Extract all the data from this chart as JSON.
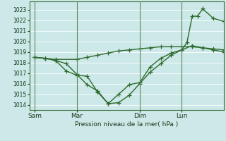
{
  "xlabel": "Pression niveau de la mer( hPa )",
  "bg_color": "#cce8e8",
  "grid_color": "#b8d8d8",
  "line_color": "#2d6a2d",
  "vline_color": "#5a8a5a",
  "ylim": [
    1013.5,
    1023.8
  ],
  "yticks": [
    1014,
    1015,
    1016,
    1017,
    1018,
    1019,
    1020,
    1021,
    1022,
    1023
  ],
  "xtick_labels": [
    "Sam",
    "Mar",
    "Dim",
    "Lun"
  ],
  "xtick_positions": [
    0,
    24,
    60,
    84
  ],
  "vlines": [
    0,
    24,
    60,
    84
  ],
  "xlim": [
    -3,
    108
  ],
  "series1": {
    "x": [
      0,
      6,
      12,
      24,
      30,
      36,
      42,
      48,
      54,
      60,
      66,
      72,
      78,
      84,
      90,
      96,
      102,
      108
    ],
    "y": [
      1018.5,
      1018.4,
      1018.3,
      1018.3,
      1018.5,
      1018.7,
      1018.9,
      1019.1,
      1019.2,
      1019.3,
      1019.4,
      1019.5,
      1019.5,
      1019.5,
      1019.5,
      1019.4,
      1019.3,
      1019.2
    ]
  },
  "series2": {
    "x": [
      0,
      6,
      12,
      18,
      24,
      30,
      36,
      42,
      48,
      54,
      60,
      66,
      72,
      78,
      84,
      90,
      96,
      102,
      108
    ],
    "y": [
      1018.5,
      1018.4,
      1018.2,
      1017.2,
      1016.8,
      1016.7,
      1015.2,
      1014.1,
      1015.0,
      1015.9,
      1016.1,
      1017.6,
      1018.4,
      1018.9,
      1019.2,
      1019.6,
      1019.4,
      1019.2,
      1019.0
    ]
  },
  "series3": {
    "x": [
      0,
      6,
      12,
      18,
      24,
      30,
      36,
      42,
      48,
      54,
      60,
      66,
      72,
      78,
      84,
      87,
      90,
      93,
      96,
      102,
      108
    ],
    "y": [
      1018.5,
      1018.4,
      1018.2,
      1017.9,
      1016.9,
      1015.9,
      1015.3,
      1014.1,
      1014.2,
      1014.9,
      1016.0,
      1017.1,
      1017.9,
      1018.7,
      1019.2,
      1019.9,
      1022.4,
      1022.4,
      1023.1,
      1022.2,
      1021.9
    ]
  },
  "marker": "+",
  "markersize": 4,
  "linewidth": 1.0
}
